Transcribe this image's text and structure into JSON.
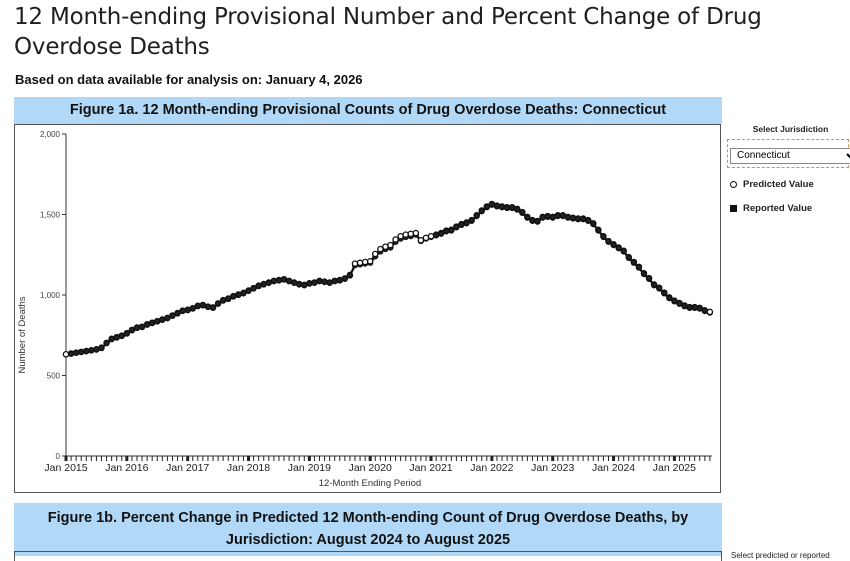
{
  "page": {
    "title": "12 Month-ending Provisional Number and Percent Change of Drug Overdose Deaths",
    "data_date": "Based on data available for analysis on: January 4, 2026"
  },
  "figure1a": {
    "title": "Figure 1a. 12 Month-ending Provisional Counts of Drug Overdose Deaths: Connecticut"
  },
  "side_panel": {
    "select_label": "Select Jurisdiction",
    "selected_jurisdiction": "Connecticut",
    "legend": {
      "predicted": "Predicted Value",
      "reported": "Reported Value"
    }
  },
  "figure1b": {
    "title_line1": "Figure 1b. Percent Change in Predicted 12 Month-ending Count of Drug Overdose Deaths, by",
    "title_line2": "Jurisdiction: August 2024 to August 2025",
    "side_label": "Select predicted or reported"
  },
  "colors": {
    "header_bg": "#b1d9f7",
    "select_border": "#e08a3c",
    "line": "#111111"
  },
  "chart_data": {
    "type": "line",
    "title": "Figure 1a. 12 Month-ending Provisional Counts of Drug Overdose Deaths: Connecticut",
    "xlabel": "12-Month Ending Period",
    "ylabel": "Number of Deaths",
    "ylim": [
      0,
      2000
    ],
    "yticks": [
      0,
      500,
      1000,
      1500,
      2000
    ],
    "ytick_labels": [
      "0",
      "500",
      "1,000",
      "1,500",
      "2,000"
    ],
    "xtick_labels": [
      "Jan 2015",
      "Jan 2016",
      "Jan 2017",
      "Jan 2018",
      "Jan 2019",
      "Jan 2020",
      "Jan 2021",
      "Jan 2022",
      "Jan 2023",
      "Jan 2024",
      "Jan 2025"
    ],
    "x_start": "Jan 2015",
    "x_end": "Aug 2025",
    "grid": false,
    "legend": "right",
    "series": [
      {
        "name": "Reported Value",
        "marker": "filled",
        "values": [
          630,
          635,
          640,
          645,
          650,
          655,
          660,
          670,
          700,
          725,
          735,
          745,
          760,
          780,
          795,
          800,
          815,
          825,
          835,
          845,
          855,
          870,
          885,
          900,
          905,
          915,
          930,
          935,
          925,
          920,
          945,
          965,
          975,
          990,
          1000,
          1010,
          1025,
          1040,
          1055,
          1065,
          1075,
          1085,
          1090,
          1095,
          1085,
          1075,
          1065,
          1060,
          1070,
          1075,
          1085,
          1080,
          1075,
          1085,
          1090,
          1100,
          1120,
          1185,
          1190,
          1195,
          1200,
          1240,
          1270,
          1285,
          1295,
          1330,
          1350,
          1360,
          1365,
          1375,
          1335,
          1350,
          1360,
          1370,
          1380,
          1395,
          1400,
          1420,
          1435,
          1445,
          1460,
          1490,
          1520,
          1545,
          1560,
          1550,
          1545,
          1540,
          1540,
          1530,
          1510,
          1480,
          1460,
          1455,
          1480,
          1485,
          1480,
          1490,
          1490,
          1480,
          1475,
          1470,
          1470,
          1460,
          1440,
          1400,
          1360,
          1330,
          1310,
          1290,
          1270,
          1230,
          1200,
          1170,
          1130,
          1100,
          1060,
          1040,
          1010,
          980,
          960,
          945,
          930,
          920,
          920,
          915,
          900,
          890
        ]
      },
      {
        "name": "Predicted Value",
        "marker": "open",
        "values": [
          632,
          637,
          642,
          647,
          652,
          657,
          663,
          673,
          703,
          728,
          738,
          748,
          763,
          783,
          798,
          803,
          818,
          828,
          838,
          848,
          858,
          873,
          888,
          903,
          908,
          918,
          933,
          938,
          928,
          923,
          948,
          968,
          978,
          993,
          1003,
          1013,
          1028,
          1043,
          1058,
          1068,
          1078,
          1088,
          1093,
          1098,
          1088,
          1078,
          1068,
          1063,
          1073,
          1078,
          1088,
          1083,
          1078,
          1088,
          1093,
          1103,
          1125,
          1195,
          1200,
          1205,
          1210,
          1255,
          1285,
          1300,
          1310,
          1345,
          1365,
          1375,
          1380,
          1385,
          1340,
          1355,
          1365,
          1375,
          1385,
          1400,
          1405,
          1425,
          1440,
          1450,
          1465,
          1495,
          1525,
          1550,
          1565,
          1555,
          1550,
          1545,
          1545,
          1535,
          1515,
          1485,
          1465,
          1460,
          1485,
          1490,
          1485,
          1495,
          1495,
          1485,
          1480,
          1475,
          1475,
          1465,
          1445,
          1405,
          1365,
          1335,
          1315,
          1295,
          1275,
          1235,
          1205,
          1175,
          1135,
          1105,
          1065,
          1045,
          1015,
          985,
          965,
          950,
          935,
          925,
          925,
          920,
          905,
          895
        ]
      }
    ]
  }
}
